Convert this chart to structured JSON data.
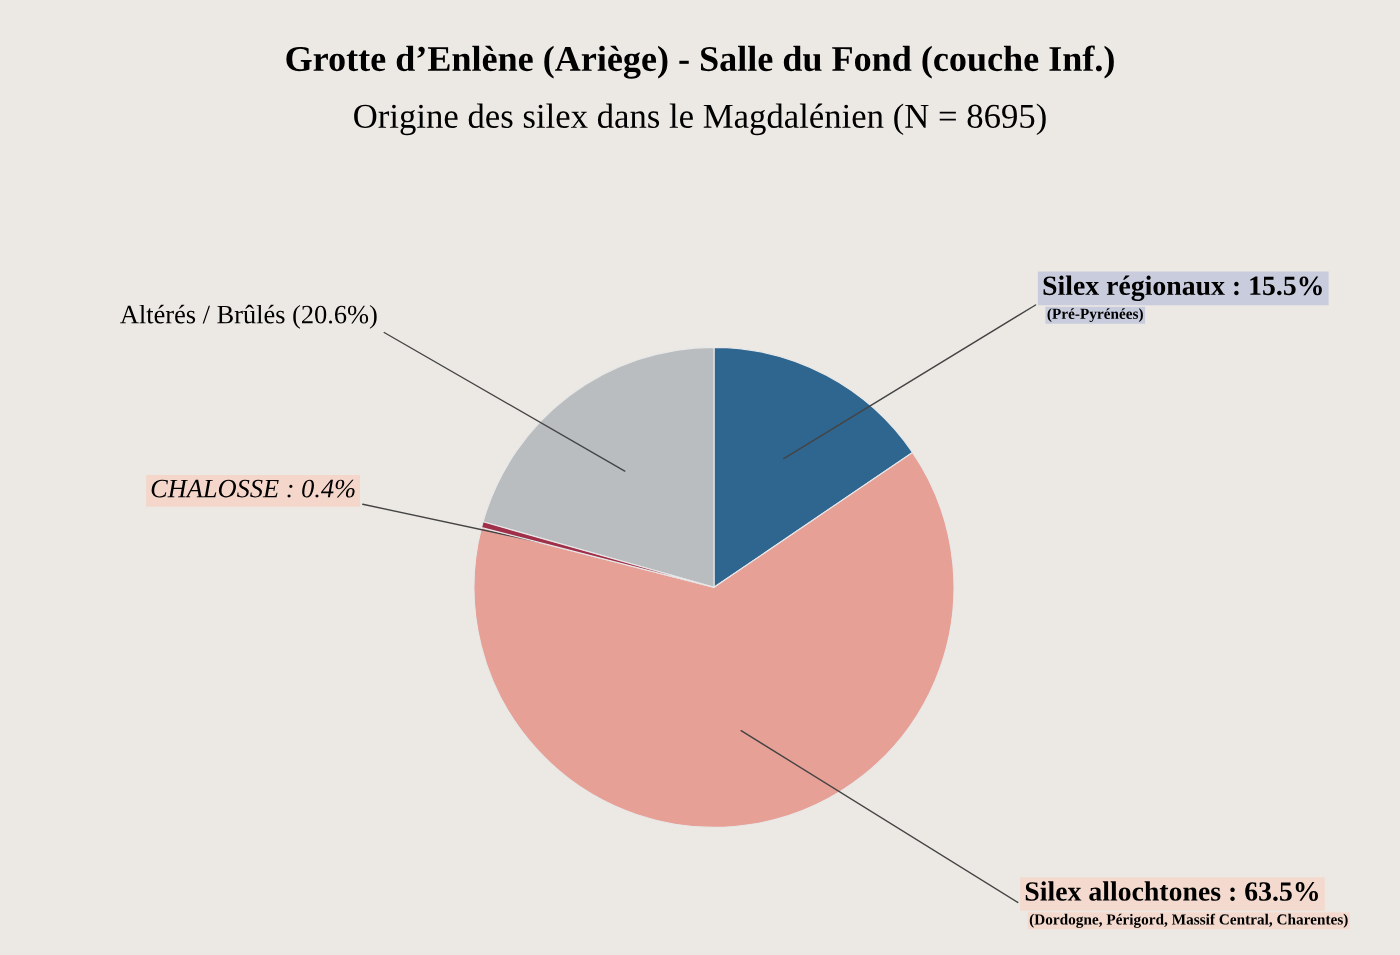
{
  "chart_data": {
    "type": "pie",
    "title": "Grotte d’Enlène (Ariège) - Salle du Fond (couche Inf.)",
    "subtitle": "Origine des silex dans le Magdalénien (N = 8695)",
    "categories": [
      "Silex régionaux : 15.5%\n(Pré-Pyrénées)",
      "Silex allochtones : 63.5%\n(Dordogne, Périgord, Massif Central, Charentes)",
      "CHALOSSE : 0.4%",
      "Altérés / Brûlés (20.6%)"
    ],
    "values": [
      15.5,
      63.5,
      0.4,
      20.6
    ],
    "colors": [
      "#2f6690",
      "#e6a096",
      "#a0304a",
      "#b9bdc0"
    ],
    "legend": false
  }
}
